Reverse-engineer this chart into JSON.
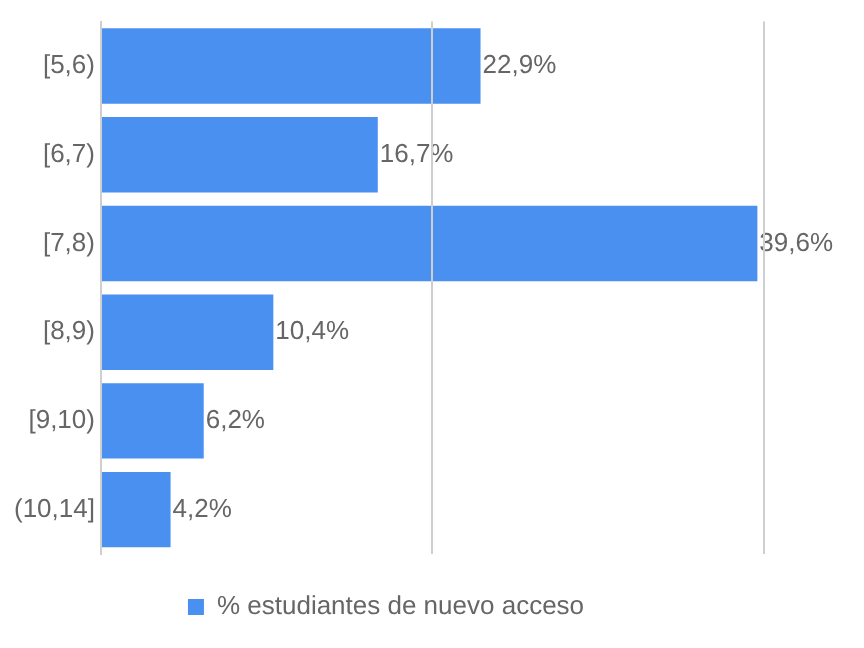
{
  "chart_data": {
    "type": "bar",
    "orientation": "horizontal",
    "categories": [
      "[5,6)",
      "[6,7)",
      "[7,8)",
      "[8,9)",
      "[9,10)",
      "(10,14]"
    ],
    "series": [
      {
        "name": "% estudiantes de nuevo acceso",
        "color": "#4a90f0",
        "values": [
          22.9,
          16.7,
          39.6,
          10.4,
          6.2,
          4.2
        ],
        "value_labels": [
          "22,9%",
          "16,7%",
          "39,6%",
          "10,4%",
          "6,2%",
          "4,2%"
        ]
      }
    ],
    "xlim": [
      0,
      40
    ],
    "xticks": [
      {
        "value": 0,
        "label": null
      },
      {
        "value": 20,
        "label": null
      },
      {
        "value": 40,
        "label": null
      }
    ],
    "tick_labels": "y",
    "grid": "x",
    "legend": "bottom"
  }
}
